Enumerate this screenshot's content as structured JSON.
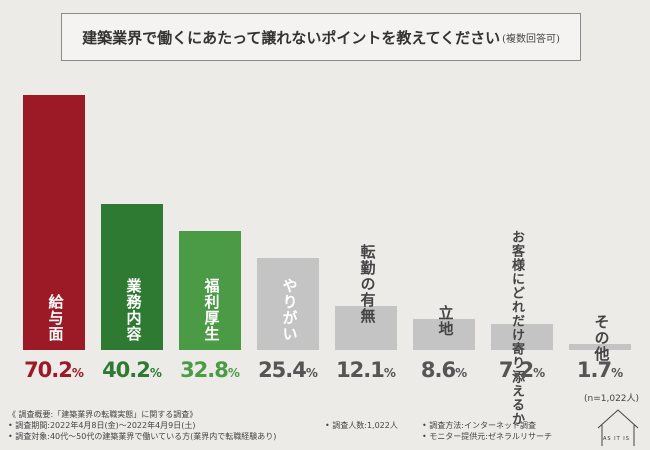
{
  "title": {
    "main": "建築業界で働くにあたって譲れないポイントを教えてください",
    "sub": "(複数回答可)"
  },
  "chart_data": {
    "type": "bar",
    "title": "建築業界で働くにあたって譲れないポイントを教えてください(複数回答可)",
    "categories": [
      "給与面",
      "業務内容",
      "福利厚生",
      "やりがい",
      "転勤の有無",
      "立地",
      "お客様にどれだけ寄り添えるか",
      "その他"
    ],
    "values": [
      70.2,
      40.2,
      32.8,
      25.4,
      12.1,
      8.6,
      7.2,
      1.7
    ],
    "value_big": [
      "70.2",
      "40.2",
      "32.8",
      "25.4",
      "12.1",
      "8.6",
      "7.2",
      "1.7"
    ],
    "unit": "%",
    "ylim": [
      0,
      100
    ],
    "colors": [
      "#9b1a26",
      "#2f7a33",
      "#4a9a46",
      "#c4c4c4",
      "#c4c4c4",
      "#c4c4c4",
      "#c4c4c4",
      "#c4c4c4"
    ],
    "value_colors": [
      "#9b1a26",
      "#2f7a33",
      "#4a9a46",
      "#555555",
      "#555555",
      "#555555",
      "#555555",
      "#555555"
    ],
    "label_lines": [
      [
        "給与面"
      ],
      [
        "業務内容"
      ],
      [
        "福利厚生"
      ],
      [
        "やりがい"
      ],
      [
        "転勤の有無"
      ],
      [
        "立地"
      ],
      [
        "お客様にどれだけ",
        "寄り添えるか"
      ],
      [
        "その他"
      ]
    ],
    "note": "(n=1,022人)"
  },
  "footer": {
    "survey_overview": "《 調査概要:「建築業界の転職実態」に関する調査》",
    "period": "• 調査期間:2022年4月8日(金)〜2022年4月9日(土)",
    "target": "• 調査対象:40代〜50代の建築業界で働いている方(業界内で転職経験あり)",
    "respondents": "• 調査人数:1,022人",
    "method": "• 調査方法:インターネット調査",
    "monitor": "• モニター提供元:ゼネラルリサーチ"
  },
  "logo": {
    "text": "AS IT IS"
  }
}
